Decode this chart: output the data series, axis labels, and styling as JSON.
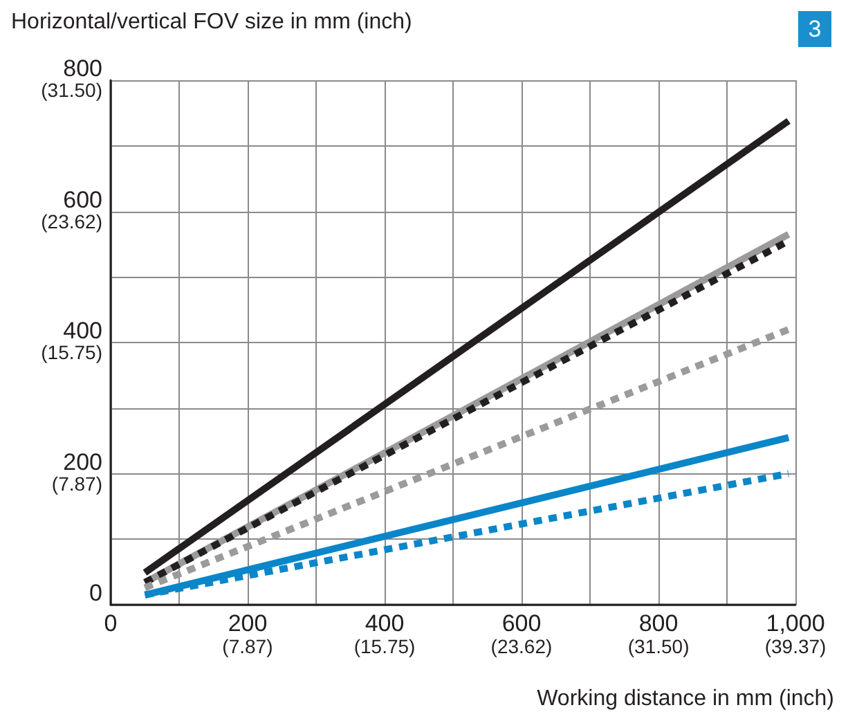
{
  "chart_data": {
    "type": "line",
    "xlabel": "Working distance in mm (inch)",
    "ylabel": "Horizontal/vertical FOV size in mm (inch)",
    "annotations": [
      "3"
    ],
    "x": [
      50,
      990
    ],
    "series": [
      {
        "color": "#231f20",
        "values": [
          49,
          738
        ],
        "line_style": "solid"
      },
      {
        "color": "#9b9b9b",
        "values": [
          34,
          565
        ],
        "line_style": "solid"
      },
      {
        "color": "#231f20",
        "values": [
          34,
          555
        ],
        "line_style": "dashed"
      },
      {
        "color": "#9b9b9b",
        "values": [
          26,
          420
        ],
        "line_style": "dashed"
      },
      {
        "color": "#0a86c9",
        "values": [
          15,
          255
        ],
        "line_style": "solid"
      },
      {
        "color": "#0a86c9",
        "values": [
          15,
          200
        ],
        "line_style": "dashed"
      }
    ],
    "xlim": [
      0,
      1000
    ],
    "ylim": [
      0,
      800
    ],
    "xticks": [
      0,
      {
        "value": 100,
        "label": null
      },
      200,
      {
        "value": 300,
        "label": null
      },
      400,
      {
        "value": 500,
        "label": null
      },
      600,
      {
        "value": 700,
        "label": null
      },
      800,
      {
        "value": 900,
        "label": null
      },
      {
        "value": 1000,
        "label": "1,000"
      }
    ],
    "yticks": [
      0,
      {
        "value": 100,
        "label": null
      },
      200,
      {
        "value": 300,
        "label": null
      },
      400,
      {
        "value": 500,
        "label": null
      },
      600,
      {
        "value": 700,
        "label": null
      },
      800
    ],
    "x2lim": [
      0,
      39.37
    ],
    "x2ticks": [
      {
        "value": 7.87,
        "label": "(7.87)"
      },
      {
        "value": 15.75,
        "label": "(15.75)"
      },
      {
        "value": 23.62,
        "label": "(23.62)"
      },
      {
        "value": 31.5,
        "label": "(31.50)"
      },
      {
        "value": 39.37,
        "label": "(39.37)"
      }
    ],
    "y2lim": [
      0,
      31.5
    ],
    "y2ticks": [
      {
        "value": 7.87,
        "label": "(7.87)"
      },
      {
        "value": 15.75,
        "label": "(15.75)"
      },
      {
        "value": 23.62,
        "label": "(23.62)"
      },
      {
        "value": 31.5,
        "label": "(31.50)"
      }
    ],
    "grid": true,
    "marker": "none"
  }
}
